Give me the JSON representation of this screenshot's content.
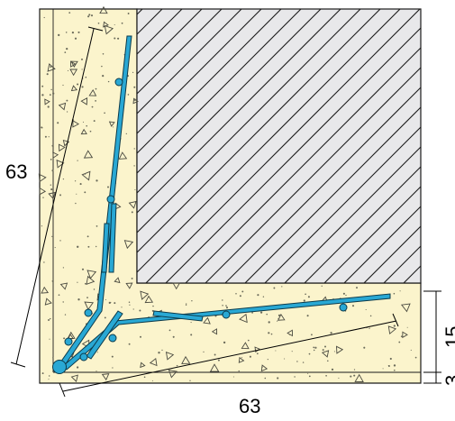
{
  "drawing": {
    "type": "reinforced-concrete-corner-detail",
    "colors": {
      "concrete_fill": "#fbf4cc",
      "wall_fill": "#e8e8ea",
      "hatch": "#1a1a1a",
      "rebar": "#29a8d4",
      "rebar_outline": "#0c3a4a",
      "outline": "#1a1a1a"
    },
    "dimensions": {
      "left_diagonal": "63",
      "bottom_diagonal": "63",
      "right_upper": "15",
      "right_lower": "3"
    },
    "icons": [
      "hatched-wall-block",
      "rebar-bar",
      "rebar-dot",
      "aggregate-triangle"
    ]
  }
}
